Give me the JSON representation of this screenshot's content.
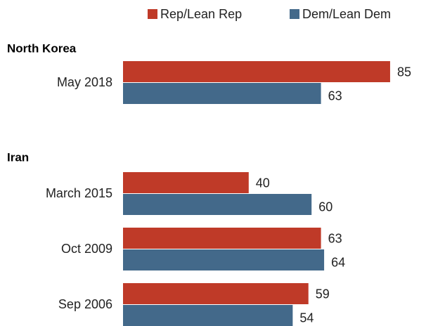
{
  "chart_data": [
    {
      "type": "hbar",
      "title": "North Korea",
      "categories": [
        "May 2018"
      ],
      "series": [
        {
          "name": "Rep/Lean Rep",
          "color": "#bf3a28",
          "values": [
            85
          ]
        },
        {
          "name": "Dem/Lean Dem",
          "color": "#43698a",
          "values": [
            63
          ]
        }
      ]
    },
    {
      "type": "hbar",
      "title": "Iran",
      "categories": [
        "March 2015",
        "Oct 2009",
        "Sep 2006"
      ],
      "series": [
        {
          "name": "Rep/Lean Rep",
          "color": "#bf3a28",
          "values": [
            40,
            63,
            59
          ]
        },
        {
          "name": "Dem/Lean Dem",
          "color": "#43698a",
          "values": [
            60,
            64,
            54
          ]
        }
      ]
    }
  ]
}
